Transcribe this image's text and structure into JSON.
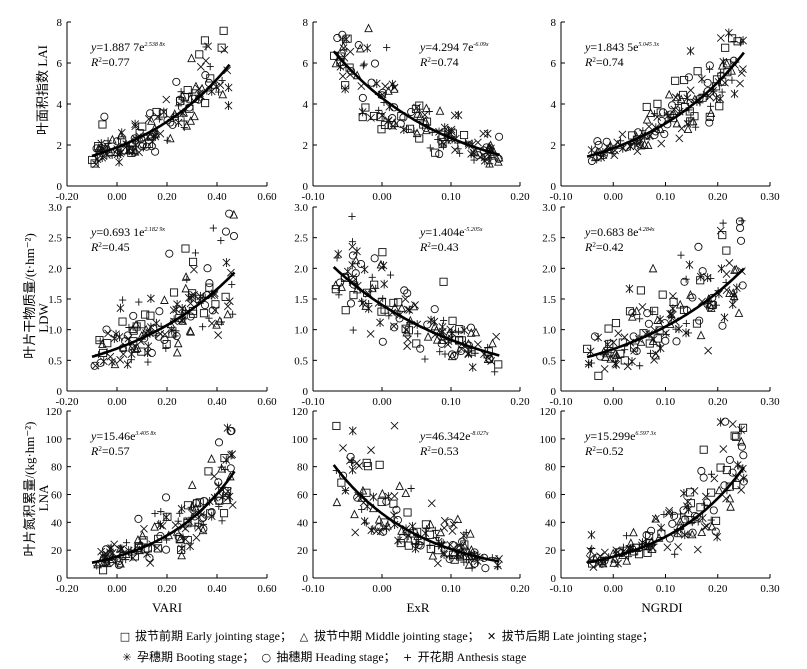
{
  "y_axis_titles": [
    "叶面积指数 LAI",
    "LDW",
    "叶片干物质量/(t·hm⁻²)",
    "LNA",
    "叶片氮积累量/(kg·hm⁻²)"
  ],
  "x_axis_titles": [
    "VARI",
    "ExR",
    "NGRDI"
  ],
  "legend": [
    {
      "symbol": "square",
      "glyph": "□",
      "label": "拔节前期 Early jointing stage；"
    },
    {
      "symbol": "triangle",
      "glyph": "△",
      "label": "拔节中期 Middle jointing stage；"
    },
    {
      "symbol": "x",
      "glyph": "✕",
      "label": "拔节后期 Late jointing stage；"
    },
    {
      "symbol": "star",
      "glyph": "✳",
      "label": "孕穗期 Booting stage；"
    },
    {
      "symbol": "circle",
      "glyph": "○",
      "label": "抽穗期 Heading stage；"
    },
    {
      "symbol": "plus",
      "glyph": "+",
      "label": "开花期 Anthesis stage"
    }
  ],
  "chart_data": [
    {
      "type": "scatter",
      "row": 0,
      "col": 0,
      "xvar": "VARI",
      "yvar": "LAI",
      "xlim": [
        -0.2,
        0.6
      ],
      "xticks": [
        "-0.20",
        "0.00",
        "0.20",
        "0.40",
        "0.60"
      ],
      "ylim": [
        0,
        8
      ],
      "yticks": [
        "0",
        "2",
        "4",
        "6",
        "8"
      ],
      "equation": {
        "y": "y",
        "eq": "=1.887 7e",
        "exp": "2.538 8x",
        "r2_label": "R",
        "r2_val": "=0.77"
      },
      "fit": {
        "a": 1.8877,
        "b": 2.5388,
        "range": [
          -0.1,
          0.45
        ]
      },
      "seed": 11,
      "noise": 0.25
    },
    {
      "type": "scatter",
      "row": 0,
      "col": 1,
      "xvar": "ExR",
      "yvar": "LAI",
      "xlim": [
        -0.1,
        0.2
      ],
      "xticks": [
        "-0.10",
        "0.00",
        "0.10",
        "0.20"
      ],
      "ylim": [
        0,
        8
      ],
      "yticks": [
        "0",
        "2",
        "4",
        "6",
        "8"
      ],
      "equation": {
        "y": "y",
        "eq": "=4.294 7e",
        "exp": "-6.09x",
        "r2_label": "R",
        "r2_val": "=0.74"
      },
      "fit": {
        "a": 4.2947,
        "b": -6.09,
        "range": [
          -0.07,
          0.17
        ]
      },
      "seed": 23,
      "noise": 0.25
    },
    {
      "type": "scatter",
      "row": 0,
      "col": 2,
      "xvar": "NGRDI",
      "yvar": "LAI",
      "xlim": [
        -0.1,
        0.3
      ],
      "xticks": [
        "-0.10",
        "0.00",
        "0.10",
        "0.20",
        "0.30"
      ],
      "ylim": [
        0,
        8
      ],
      "yticks": [
        "0",
        "2",
        "4",
        "6",
        "8"
      ],
      "equation": {
        "y": "y",
        "eq": "=1.843 5e",
        "exp": "5.045 3x",
        "r2_label": "R",
        "r2_val": "=0.74"
      },
      "fit": {
        "a": 1.8435,
        "b": 5.0453,
        "range": [
          -0.05,
          0.25
        ]
      },
      "seed": 37,
      "noise": 0.25
    },
    {
      "type": "scatter",
      "row": 1,
      "col": 0,
      "xvar": "VARI",
      "yvar": "LDW",
      "xlim": [
        -0.2,
        0.6
      ],
      "xticks": [
        "-0.20",
        "0.00",
        "0.20",
        "0.40",
        "0.60"
      ],
      "ylim": [
        0,
        3.0
      ],
      "yticks": [
        "0",
        "0.5",
        "1.0",
        "1.5",
        "2.0",
        "2.5",
        "3.0"
      ],
      "equation": {
        "y": "y",
        "eq": "=0.693 1e",
        "exp": "2.182 9x",
        "r2_label": "R",
        "r2_val": "=0.45"
      },
      "fit": {
        "a": 0.6931,
        "b": 2.1829,
        "range": [
          -0.1,
          0.47
        ]
      },
      "seed": 41,
      "noise": 0.35
    },
    {
      "type": "scatter",
      "row": 1,
      "col": 1,
      "xvar": "ExR",
      "yvar": "LDW",
      "xlim": [
        -0.1,
        0.2
      ],
      "xticks": [
        "-0.10",
        "0.00",
        "0.10",
        "0.20"
      ],
      "ylim": [
        0,
        3.0
      ],
      "yticks": [
        "0",
        "0.5",
        "1.0",
        "1.5",
        "2.0",
        "2.5",
        "3.0"
      ],
      "equation": {
        "y": "y",
        "eq": "=1.404e",
        "exp": "-5.205x",
        "r2_label": "R",
        "r2_val": "=0.43"
      },
      "fit": {
        "a": 1.404,
        "b": -5.205,
        "range": [
          -0.07,
          0.17
        ]
      },
      "seed": 53,
      "noise": 0.35
    },
    {
      "type": "scatter",
      "row": 1,
      "col": 2,
      "xvar": "NGRDI",
      "yvar": "LDW",
      "xlim": [
        -0.1,
        0.3
      ],
      "xticks": [
        "-0.10",
        "0.00",
        "0.10",
        "0.20",
        "0.30"
      ],
      "ylim": [
        0,
        3.0
      ],
      "yticks": [
        "0",
        "0.5",
        "1.0",
        "1.5",
        "2.0",
        "2.5",
        "3.0"
      ],
      "equation": {
        "y": "y",
        "eq": "=0.683 8e",
        "exp": "4.284x",
        "r2_label": "R",
        "r2_val": "=0.42"
      },
      "fit": {
        "a": 0.6838,
        "b": 4.284,
        "range": [
          -0.05,
          0.25
        ]
      },
      "seed": 67,
      "noise": 0.35
    },
    {
      "type": "scatter",
      "row": 2,
      "col": 0,
      "xvar": "VARI",
      "yvar": "LNA",
      "xlim": [
        -0.2,
        0.6
      ],
      "xticks": [
        "-0.20",
        "0.00",
        "0.20",
        "0.40",
        "0.60"
      ],
      "ylim": [
        0,
        120
      ],
      "yticks": [
        "0",
        "20",
        "40",
        "60",
        "80",
        "100",
        "120"
      ],
      "equation": {
        "y": "y",
        "eq": "=15.46e",
        "exp": "3.405 8x",
        "r2_label": "R",
        "r2_val": "=0.57"
      },
      "fit": {
        "a": 15.46,
        "b": 3.4058,
        "range": [
          -0.1,
          0.47
        ]
      },
      "seed": 71,
      "noise": 0.4
    },
    {
      "type": "scatter",
      "row": 2,
      "col": 1,
      "xvar": "ExR",
      "yvar": "LNA",
      "xlim": [
        -0.1,
        0.2
      ],
      "xticks": [
        "-0.10",
        "0.00",
        "0.10",
        "0.20"
      ],
      "ylim": [
        0,
        120
      ],
      "yticks": [
        "0",
        "20",
        "40",
        "60",
        "80",
        "100",
        "120"
      ],
      "equation": {
        "y": "y",
        "eq": "=46.342e",
        "exp": "-8.027x",
        "r2_label": "R",
        "r2_val": "=0.53"
      },
      "fit": {
        "a": 46.342,
        "b": -8.027,
        "range": [
          -0.07,
          0.17
        ]
      },
      "seed": 83,
      "noise": 0.4
    },
    {
      "type": "scatter",
      "row": 2,
      "col": 2,
      "xvar": "NGRDI",
      "yvar": "LNA",
      "xlim": [
        -0.1,
        0.3
      ],
      "xticks": [
        "-0.10",
        "0.00",
        "0.10",
        "0.20",
        "0.30"
      ],
      "ylim": [
        0,
        120
      ],
      "yticks": [
        "0",
        "20",
        "40",
        "60",
        "80",
        "100",
        "120"
      ],
      "equation": {
        "y": "y",
        "eq": "=15.299e",
        "exp": "6.597 3x",
        "r2_label": "R",
        "r2_val": "=0.52"
      },
      "fit": {
        "a": 15.299,
        "b": 6.5973,
        "range": [
          -0.05,
          0.25
        ]
      },
      "seed": 97,
      "noise": 0.4
    }
  ]
}
